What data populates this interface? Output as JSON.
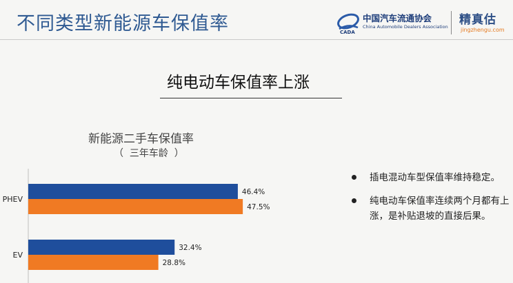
{
  "header": {
    "title": "不同类型新能源车保值率",
    "logo_caada_cn": "中国汽车流通协会",
    "logo_caada_en": "China Automobile Dealers Association",
    "logo_jzg_cn": "精真估",
    "logo_jzg_url": "jingzhengu.com"
  },
  "section": {
    "heading": "纯电动车保值率上涨"
  },
  "bullets": [
    "插电混动车型保值率维持稳定。",
    "纯电动车保值率连续两个月都有上涨，是补贴退坡的直接后果。"
  ],
  "chart_data": {
    "type": "bar",
    "orientation": "horizontal",
    "title": "新能源二手车保值率",
    "subtitle": "（  三年车龄  ）",
    "categories": [
      "PHEV",
      "EV"
    ],
    "series": [
      {
        "values": [
          46.4,
          32.4
        ],
        "labels": [
          "46.4%",
          "32.4%"
        ],
        "color": "#1f4e9c"
      },
      {
        "values": [
          47.5,
          28.8
        ],
        "labels": [
          "47.5%",
          "28.8%"
        ],
        "color": "#f07a23"
      }
    ],
    "legend": "none",
    "grid": false
  }
}
